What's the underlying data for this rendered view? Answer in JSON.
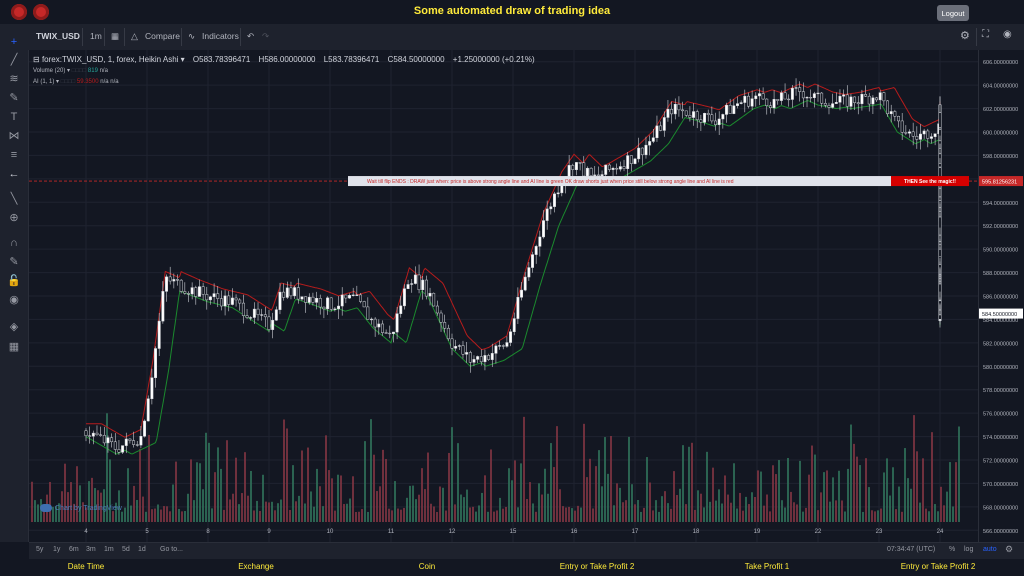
{
  "app": {
    "title": "Some automated draw of trading idea",
    "logout_label": "Logout"
  },
  "toolbar": {
    "symbol": "TWIX_USD",
    "interval": "1m",
    "compare": "Compare",
    "indicators": "Indicators"
  },
  "legend": {
    "series": "forex:TWIX_USD, 1, forex, Heikin Ashi",
    "o": "O583.78396471",
    "h": "H586.00000000",
    "l": "L583.78396471",
    "c": "C584.50000000",
    "change": "+1.25000000 (+0.21%)",
    "volume": "Volume (20)",
    "volume_val": "819",
    "volume_na": "n/a",
    "ai": "AI (1, 1)",
    "ai_val": "59.3500",
    "ai_na1": "n/a",
    "ai_na2": "n/a"
  },
  "banner": {
    "text": "Wait till flip ENDS  :  DRAW just when:  price is above strong angle line and AI line is green          OK          draw shorts just when price still below strong angle line and AI line is red",
    "magic": "THEN See the magic!!",
    "price": "595.81256231"
  },
  "last_price": "584.50000000",
  "watermark": "Chart by TradingView",
  "bottom": {
    "ranges": [
      "5y",
      "1y",
      "6m",
      "3m",
      "1m",
      "5d",
      "1d"
    ],
    "goto": "Go to...",
    "time": "07:34:47 (UTC)",
    "percent": "%",
    "log": "log",
    "auto": "auto"
  },
  "footer": {
    "cols": [
      "Date Time",
      "Exchange",
      "Coin",
      "Entry or Take Profit 2",
      "Take Profit 1",
      "Entry or Take Profit 2"
    ]
  },
  "colors": {
    "up": "#26a69a",
    "down": "#ef5350",
    "angle_line": "#b71c1c",
    "ai_line": "#1b8a2e",
    "banner_bg": "#e0e3eb",
    "banner_text": "#c62828",
    "magic_bg": "#d50000"
  },
  "chart_data": {
    "type": "candlestick",
    "x_ticks": [
      "4",
      "5",
      "8",
      "9",
      "10",
      "11",
      "12",
      "15",
      "16",
      "17",
      "18",
      "19",
      "22",
      "23",
      "24"
    ],
    "y_ticks": [
      "566.00000000",
      "568.00000000",
      "570.00000000",
      "572.00000000",
      "574.00000000",
      "576.00000000",
      "578.00000000",
      "580.00000000",
      "582.00000000",
      "584.00000000",
      "586.00000000",
      "588.00000000",
      "590.00000000",
      "592.00000000",
      "594.00000000",
      "596.00000000",
      "598.00000000",
      "600.00000000",
      "602.00000000",
      "604.00000000",
      "606.00000000"
    ],
    "ylim": [
      565,
      607
    ],
    "price_path": [
      [
        4,
        574.5
      ],
      [
        4.5,
        573.0
      ],
      [
        4.9,
        574.0
      ],
      [
        5.1,
        580.0
      ],
      [
        5.3,
        587.5
      ],
      [
        5.6,
        586.8
      ],
      [
        6.0,
        586.0
      ],
      [
        6.4,
        585.5
      ],
      [
        7.0,
        583.5
      ],
      [
        7.2,
        586.5
      ],
      [
        7.6,
        586.0
      ],
      [
        8.0,
        585.2
      ],
      [
        8.4,
        585.8
      ],
      [
        8.7,
        583.8
      ],
      [
        9.0,
        582.5
      ],
      [
        9.3,
        587.8
      ],
      [
        9.6,
        586.5
      ],
      [
        10.0,
        582.0
      ],
      [
        10.3,
        580.5
      ],
      [
        10.6,
        581.0
      ],
      [
        10.9,
        582.0
      ],
      [
        11.2,
        587.5
      ],
      [
        11.5,
        592.5
      ],
      [
        11.8,
        596.0
      ],
      [
        12.0,
        597.5
      ],
      [
        12.3,
        596.0
      ],
      [
        12.6,
        596.8
      ],
      [
        13.0,
        598.0
      ],
      [
        13.3,
        599.5
      ],
      [
        13.6,
        602.0
      ],
      [
        14.0,
        601.5
      ],
      [
        14.3,
        601.0
      ],
      [
        14.7,
        602.5
      ],
      [
        15.0,
        603.0
      ],
      [
        15.3,
        602.5
      ],
      [
        15.7,
        603.5
      ],
      [
        16.0,
        602.8
      ],
      [
        16.3,
        602.5
      ],
      [
        16.7,
        602.8
      ],
      [
        17.0,
        603.2
      ],
      [
        17.3,
        600.5
      ],
      [
        17.6,
        599.5
      ],
      [
        18.0,
        600.5
      ],
      [
        18.3,
        599.5
      ],
      [
        18.7,
        600.0
      ],
      [
        19.0,
        599.8
      ],
      [
        19.3,
        602.0
      ],
      [
        19.6,
        598.5
      ],
      [
        20.0,
        597.0
      ],
      [
        20.3,
        594.0
      ],
      [
        20.7,
        590.5
      ],
      [
        21.0,
        589.0
      ],
      [
        21.3,
        587.0
      ],
      [
        21.7,
        587.5
      ],
      [
        22.0,
        586.5
      ],
      [
        22.3,
        585.5
      ],
      [
        22.7,
        585.0
      ],
      [
        23.0,
        585.5
      ],
      [
        23.3,
        587.5
      ],
      [
        23.6,
        587.0
      ],
      [
        24.0,
        586.5
      ],
      [
        24.3,
        584.5
      ],
      [
        24.6,
        584.0
      ],
      [
        24.8,
        584.5
      ]
    ],
    "banner_price": 595.81256231
  }
}
